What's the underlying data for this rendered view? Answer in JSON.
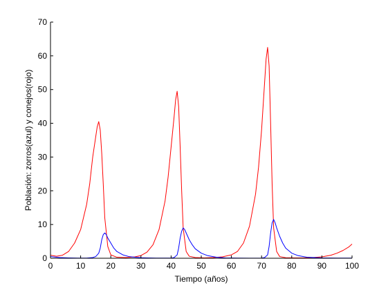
{
  "chart_data": {
    "type": "line",
    "title": "",
    "xlabel": "Tiempo (años)",
    "ylabel": "Población: zorros(azul) y conejos(rojo)",
    "xlim": [
      0,
      100
    ],
    "ylim": [
      0,
      70
    ],
    "xticks": [
      0,
      10,
      20,
      30,
      40,
      50,
      60,
      70,
      80,
      90,
      100
    ],
    "yticks": [
      0,
      10,
      20,
      30,
      40,
      50,
      60,
      70
    ],
    "grid": false,
    "legend": "none",
    "series": [
      {
        "color": "#ff0000",
        "x": [
          0,
          2,
          4,
          6,
          8,
          10,
          12,
          13,
          14,
          15,
          15.5,
          16,
          16.5,
          17,
          17.5,
          18,
          19,
          20,
          22,
          25,
          28,
          30,
          32,
          34,
          36,
          38,
          39,
          40,
          41,
          41.5,
          42,
          42.5,
          43,
          43.5,
          44,
          45,
          46,
          48,
          51,
          54,
          57,
          60,
          62,
          64,
          66,
          68,
          69,
          70,
          71,
          71.5,
          72,
          72.5,
          73,
          73.5,
          74,
          75,
          76,
          78,
          81,
          84,
          87,
          90,
          93,
          95,
          97,
          99,
          100
        ],
        "y": [
          0.9,
          0.6,
          0.9,
          2.0,
          4.5,
          8.5,
          16,
          22,
          30,
          36,
          39,
          40.5,
          38,
          31,
          22,
          12,
          3.5,
          1.0,
          0.3,
          0.2,
          0.4,
          0.8,
          1.8,
          4.0,
          8.5,
          17,
          24,
          33,
          42,
          47,
          49.5,
          45,
          33,
          20,
          9,
          2.0,
          0.6,
          0.2,
          0.1,
          0.2,
          0.4,
          1.0,
          2.0,
          4.5,
          9.5,
          19,
          27,
          38,
          52,
          59,
          62.5,
          57,
          40,
          22,
          9,
          2.0,
          0.5,
          0.15,
          0.1,
          0.1,
          0.2,
          0.4,
          0.9,
          1.5,
          2.3,
          3.4,
          4.2
        ]
      },
      {
        "color": "#0000ff",
        "x": [
          0,
          3,
          6,
          9,
          12,
          14,
          15,
          16,
          16.5,
          17,
          17.5,
          18,
          18.5,
          19,
          20,
          21,
          22,
          24,
          26,
          28,
          30,
          32,
          35,
          40,
          41,
          42,
          42.5,
          43,
          43.5,
          44,
          44.5,
          45,
          46,
          47,
          48,
          50,
          52,
          55,
          58,
          62,
          66,
          70,
          71,
          72,
          72.5,
          73,
          73.5,
          74,
          74.5,
          75,
          76,
          77,
          78,
          80,
          82,
          85,
          90,
          95,
          100
        ],
        "y": [
          0.5,
          0.2,
          0.1,
          0.05,
          0.05,
          0.2,
          0.5,
          1.5,
          3.0,
          5.5,
          7.0,
          7.5,
          7.0,
          6.0,
          4.5,
          3.0,
          2.0,
          1.0,
          0.5,
          0.3,
          0.15,
          0.1,
          0.05,
          0.05,
          0.2,
          1.0,
          3.0,
          6.0,
          8.0,
          9.0,
          8.5,
          7.5,
          5.5,
          4.0,
          2.8,
          1.5,
          0.8,
          0.3,
          0.1,
          0.05,
          0.02,
          0.05,
          0.2,
          1.0,
          3.5,
          7.5,
          10.5,
          11.5,
          10.5,
          9.0,
          6.5,
          4.5,
          3.0,
          1.5,
          0.8,
          0.3,
          0.1,
          0.05,
          0.05
        ]
      }
    ]
  }
}
